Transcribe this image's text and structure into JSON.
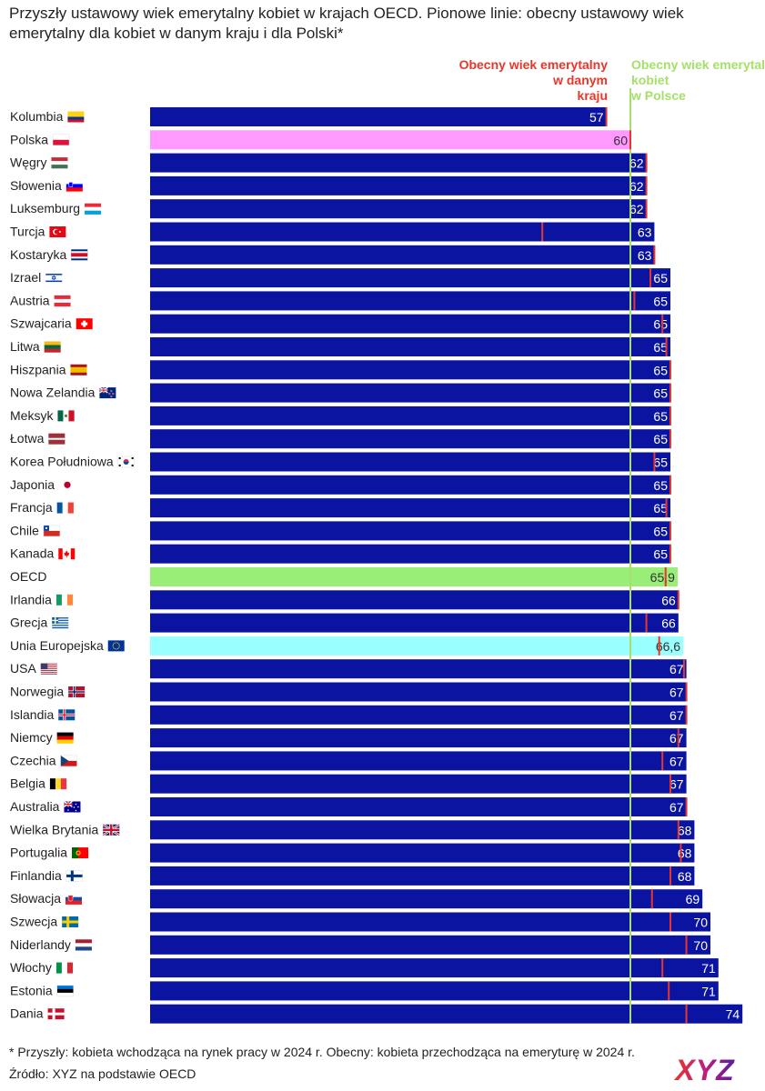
{
  "chart_data": {
    "type": "bar",
    "orientation": "horizontal",
    "title": "Przyszły ustawowy wiek emerytalny kobiet w krajach OECD. Pionowe linie: obecny ustawowy wiek emerytalny dla kobiet w danym kraju i dla Polski*",
    "xlim": [
      0,
      75
    ],
    "poland_current": 60,
    "legend": {
      "country_current": "Obecny wiek emerytalny w danym kraju",
      "poland_current": "Obecny wiek emerytalny kobiet w Polsce"
    },
    "colors": {
      "bar": "#0a14a0",
      "poland": "#ff99ff",
      "oecd": "#99ee77",
      "eu": "#99ffff",
      "marker": "#e8362a",
      "poland_line": "#a6e06a",
      "label_light": "#ffffff",
      "label_dark": "#333333"
    },
    "rows": [
      {
        "country": "Kolumbia",
        "flag": "colombia",
        "future": 57,
        "label": "57",
        "current": 57,
        "kind": "country"
      },
      {
        "country": "Polska",
        "flag": "poland",
        "future": 60,
        "label": "60",
        "current": 60,
        "kind": "poland"
      },
      {
        "country": "Węgry",
        "flag": "hungary",
        "future": 62,
        "label": "62",
        "current": 62,
        "kind": "country"
      },
      {
        "country": "Słowenia",
        "flag": "slovenia",
        "future": 62,
        "label": "62",
        "current": 62,
        "kind": "country"
      },
      {
        "country": "Luksemburg",
        "flag": "luxembourg",
        "future": 62,
        "label": "62",
        "current": 62,
        "kind": "country"
      },
      {
        "country": "Turcja",
        "flag": "turkey",
        "future": 63,
        "label": "63",
        "current": 49,
        "kind": "country"
      },
      {
        "country": "Kostaryka",
        "flag": "costarica",
        "future": 63,
        "label": "63",
        "current": 63,
        "kind": "country"
      },
      {
        "country": "Izrael",
        "flag": "israel",
        "future": 65,
        "label": "65",
        "current": 62.5,
        "kind": "country"
      },
      {
        "country": "Austria",
        "flag": "austria",
        "future": 65,
        "label": "65",
        "current": 60.5,
        "kind": "country"
      },
      {
        "country": "Szwajcaria",
        "flag": "switzerland",
        "future": 65,
        "label": "65",
        "current": 64,
        "kind": "country"
      },
      {
        "country": "Litwa",
        "flag": "lithuania",
        "future": 65,
        "label": "65",
        "current": 64.5,
        "kind": "country"
      },
      {
        "country": "Hiszpania",
        "flag": "spain",
        "future": 65,
        "label": "65",
        "current": 65,
        "kind": "country"
      },
      {
        "country": "Nowa Zelandia",
        "flag": "newzealand",
        "future": 65,
        "label": "65",
        "current": 65,
        "kind": "country"
      },
      {
        "country": "Meksyk",
        "flag": "mexico",
        "future": 65,
        "label": "65",
        "current": 65,
        "kind": "country"
      },
      {
        "country": "Łotwa",
        "flag": "latvia",
        "future": 65,
        "label": "65",
        "current": 65,
        "kind": "country"
      },
      {
        "country": "Korea Południowa",
        "flag": "korea",
        "future": 65,
        "label": "65",
        "current": 63,
        "kind": "country"
      },
      {
        "country": "Japonia",
        "flag": "japan",
        "future": 65,
        "label": "65",
        "current": 65,
        "kind": "country"
      },
      {
        "country": "Francja",
        "flag": "france",
        "future": 65,
        "label": "65",
        "current": 64.5,
        "kind": "country"
      },
      {
        "country": "Chile",
        "flag": "chile",
        "future": 65,
        "label": "65",
        "current": 65,
        "kind": "country"
      },
      {
        "country": "Kanada",
        "flag": "canada",
        "future": 65,
        "label": "65",
        "current": 65,
        "kind": "country"
      },
      {
        "country": "OECD",
        "flag": "",
        "future": 65.9,
        "label": "65,9",
        "current": 64.4,
        "kind": "oecd"
      },
      {
        "country": "Irlandia",
        "flag": "ireland",
        "future": 66,
        "label": "66",
        "current": 66,
        "kind": "country"
      },
      {
        "country": "Grecja",
        "flag": "greece",
        "future": 66,
        "label": "66",
        "current": 62,
        "kind": "country"
      },
      {
        "country": "Unia Europejska",
        "flag": "eu",
        "future": 66.6,
        "label": "66,6",
        "current": 63.6,
        "kind": "eu"
      },
      {
        "country": "USA",
        "flag": "usa",
        "future": 67,
        "label": "67",
        "current": 66.7,
        "kind": "country"
      },
      {
        "country": "Norwegia",
        "flag": "norway",
        "future": 67,
        "label": "67",
        "current": 67,
        "kind": "country"
      },
      {
        "country": "Islandia",
        "flag": "iceland",
        "future": 67,
        "label": "67",
        "current": 67,
        "kind": "country"
      },
      {
        "country": "Niemcy",
        "flag": "germany",
        "future": 67,
        "label": "67",
        "current": 66,
        "kind": "country"
      },
      {
        "country": "Czechia",
        "flag": "czechia",
        "future": 67,
        "label": "67",
        "current": 64,
        "kind": "country"
      },
      {
        "country": "Belgia",
        "flag": "belgium",
        "future": 67,
        "label": "67",
        "current": 65,
        "kind": "country"
      },
      {
        "country": "Australia",
        "flag": "australia",
        "future": 67,
        "label": "67",
        "current": 67,
        "kind": "country"
      },
      {
        "country": "Wielka Brytania",
        "flag": "uk",
        "future": 68,
        "label": "68",
        "current": 66,
        "kind": "country"
      },
      {
        "country": "Portugalia",
        "flag": "portugal",
        "future": 68,
        "label": "68",
        "current": 66.3,
        "kind": "country"
      },
      {
        "country": "Finlandia",
        "flag": "finland",
        "future": 68,
        "label": "68",
        "current": 65,
        "kind": "country"
      },
      {
        "country": "Słowacja",
        "flag": "slovakia",
        "future": 69,
        "label": "69",
        "current": 62.7,
        "kind": "country"
      },
      {
        "country": "Szwecja",
        "flag": "sweden",
        "future": 70,
        "label": "70",
        "current": 65,
        "kind": "country"
      },
      {
        "country": "Niderlandy",
        "flag": "netherlands",
        "future": 70,
        "label": "70",
        "current": 67,
        "kind": "country"
      },
      {
        "country": "Włochy",
        "flag": "italy",
        "future": 71,
        "label": "71",
        "current": 64,
        "kind": "country"
      },
      {
        "country": "Estonia",
        "flag": "estonia",
        "future": 71,
        "label": "71",
        "current": 64.8,
        "kind": "country"
      },
      {
        "country": "Dania",
        "flag": "denmark",
        "future": 74,
        "label": "74",
        "current": 67,
        "kind": "country"
      }
    ]
  },
  "footnote": "* Przyszły: kobieta wchodząca na rynek pracy w 2024 r. Obecny: kobieta przechodząca na emeryturę w 2024 r.",
  "source": "Źródło: XYZ na podstawie OECD",
  "logo_text": "XYZ"
}
